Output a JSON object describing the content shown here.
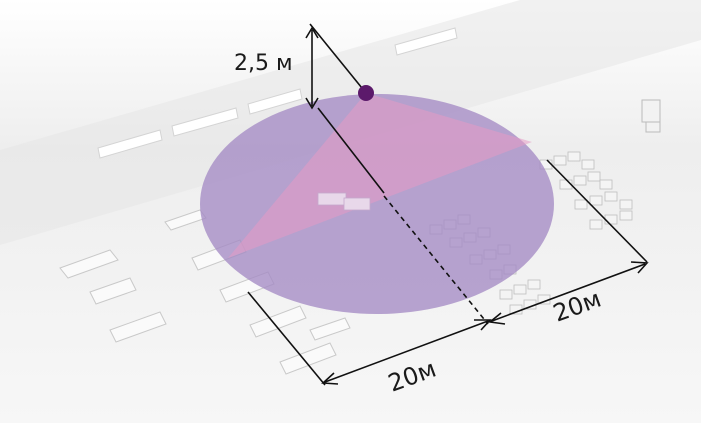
{
  "labels": {
    "height": "2,5 м",
    "distance_left": "20м",
    "distance_right": "20м"
  },
  "colors": {
    "floor": "#f1f1f1",
    "coverage_circle": "#a48bc4",
    "beam": "#e59ac4",
    "sensor": "#5c1a6b",
    "dimension_line": "#111111"
  }
}
